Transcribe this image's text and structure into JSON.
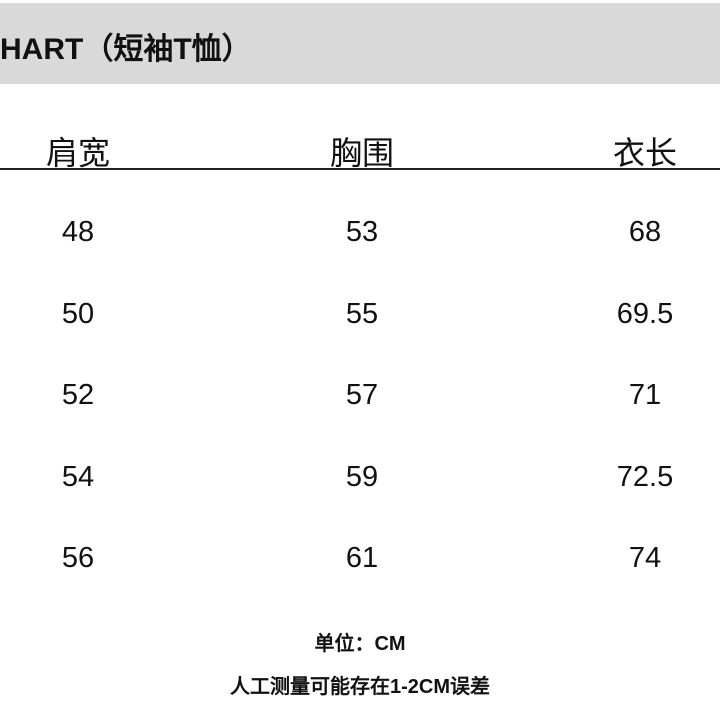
{
  "title": "HART（短袖T恤）",
  "columns": [
    "肩宽",
    "胸围",
    "衣长"
  ],
  "rows": [
    [
      "48",
      "53",
      "68"
    ],
    [
      "50",
      "55",
      "69.5"
    ],
    [
      "52",
      "57",
      "71"
    ],
    [
      "54",
      "59",
      "72.5"
    ],
    [
      "56",
      "61",
      "74"
    ]
  ],
  "notes": {
    "unit": "单位：CM",
    "tolerance": "人工测量可能存在1-2CM误差"
  },
  "colors": {
    "title_band": "#d9d9d9",
    "text": "#111111"
  }
}
